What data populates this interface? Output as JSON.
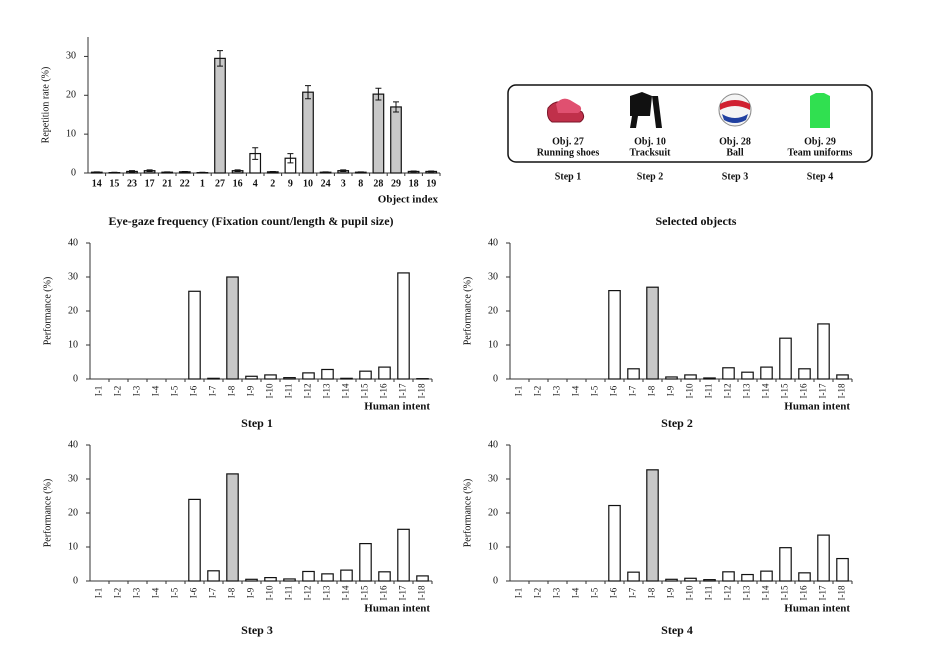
{
  "chart_data": [
    {
      "type": "bar",
      "title": "Eye-gaze frequency (Fixation count/length & pupil size)",
      "xlabel": "Object index",
      "ylabel": "Repetition rate (%)",
      "categories": [
        "14",
        "15",
        "23",
        "17",
        "21",
        "22",
        "1",
        "27",
        "16",
        "4",
        "2",
        "9",
        "10",
        "24",
        "3",
        "8",
        "28",
        "29",
        "18",
        "19"
      ],
      "values": [
        0.2,
        0.1,
        0.4,
        0.6,
        0.2,
        0.3,
        0.1,
        29.5,
        0.6,
        5,
        0.3,
        3.8,
        20.8,
        0.2,
        0.6,
        0.2,
        20.3,
        17,
        0.4,
        0.4
      ],
      "errors": [
        0.1,
        0.1,
        0.2,
        0.2,
        0.1,
        0.1,
        0.1,
        2,
        0.2,
        1.5,
        0.1,
        1.2,
        1.7,
        0.1,
        0.2,
        0.1,
        1.5,
        1.3,
        0.1,
        0.1
      ],
      "colors": [
        "#bbb",
        "#bbb",
        "#bbb",
        "#bbb",
        "#bbb",
        "#bbb",
        "#bbb",
        "#c8c8c8",
        "#bbb",
        "#ffffff",
        "#bbb",
        "#ffffff",
        "#c8c8c8",
        "#bbb",
        "#bbb",
        "#bbb",
        "#c8c8c8",
        "#c8c8c8",
        "#bbb",
        "#bbb"
      ],
      "ylim": [
        0,
        35
      ],
      "yticks": [
        0,
        10,
        20,
        30
      ]
    },
    {
      "type": "bar",
      "title": "Step 1",
      "xlabel": "Human intent",
      "ylabel": "Performance (%)",
      "categories": [
        "I-1",
        "I-2",
        "I-3",
        "I-4",
        "I-5",
        "I-6",
        "I-7",
        "I-8",
        "I-9",
        "I-10",
        "I-11",
        "I-12",
        "I-13",
        "I-14",
        "I-15",
        "I-16",
        "I-17",
        "I-18"
      ],
      "values": [
        0,
        0,
        0,
        0,
        0,
        25.8,
        0.2,
        30,
        0.8,
        1.2,
        0.4,
        1.8,
        2.8,
        0.2,
        2.3,
        3.5,
        31.2,
        0.1
      ],
      "colors": [
        "#fff",
        "#fff",
        "#fff",
        "#fff",
        "#fff",
        "#fff",
        "#fff",
        "#c8c8c8",
        "#fff",
        "#fff",
        "#fff",
        "#fff",
        "#fff",
        "#fff",
        "#fff",
        "#fff",
        "#fff",
        "#fff"
      ],
      "ylim": [
        0,
        40
      ],
      "yticks": [
        0,
        10,
        20,
        30,
        40
      ]
    },
    {
      "type": "bar",
      "title": "Step 2",
      "xlabel": "Human intent",
      "ylabel": "Performance (%)",
      "categories": [
        "I-1",
        "I-2",
        "I-3",
        "I-4",
        "I-5",
        "I-6",
        "I-7",
        "I-8",
        "I-9",
        "I-10",
        "I-11",
        "I-12",
        "I-13",
        "I-14",
        "I-15",
        "I-16",
        "I-17",
        "I-18"
      ],
      "values": [
        0,
        0,
        0,
        0,
        0,
        26,
        3,
        27,
        0.6,
        1.2,
        0.3,
        3.3,
        2,
        3.5,
        12,
        3,
        16.2,
        1.2
      ],
      "colors": [
        "#fff",
        "#fff",
        "#fff",
        "#fff",
        "#fff",
        "#fff",
        "#fff",
        "#c8c8c8",
        "#fff",
        "#fff",
        "#fff",
        "#fff",
        "#fff",
        "#fff",
        "#fff",
        "#fff",
        "#fff",
        "#fff"
      ],
      "ylim": [
        0,
        40
      ],
      "yticks": [
        0,
        10,
        20,
        30,
        40
      ]
    },
    {
      "type": "bar",
      "title": "Step 3",
      "xlabel": "Human intent",
      "ylabel": "Performance (%)",
      "categories": [
        "I-1",
        "I-2",
        "I-3",
        "I-4",
        "I-5",
        "I-6",
        "I-7",
        "I-8",
        "I-9",
        "I-10",
        "I-11",
        "I-12",
        "I-13",
        "I-14",
        "I-15",
        "I-16",
        "I-17",
        "I-18"
      ],
      "values": [
        0,
        0,
        0,
        0,
        0,
        24,
        3,
        31.5,
        0.5,
        1,
        0.6,
        2.8,
        2.1,
        3.2,
        11,
        2.7,
        15.2,
        1.5
      ],
      "colors": [
        "#fff",
        "#fff",
        "#fff",
        "#fff",
        "#fff",
        "#fff",
        "#fff",
        "#c8c8c8",
        "#fff",
        "#fff",
        "#fff",
        "#fff",
        "#fff",
        "#fff",
        "#fff",
        "#fff",
        "#fff",
        "#fff"
      ],
      "ylim": [
        0,
        40
      ],
      "yticks": [
        0,
        10,
        20,
        30,
        40
      ]
    },
    {
      "type": "bar",
      "title": "Step 4",
      "xlabel": "Human intent",
      "ylabel": "Performance (%)",
      "categories": [
        "I-1",
        "I-2",
        "I-3",
        "I-4",
        "I-5",
        "I-6",
        "I-7",
        "I-8",
        "I-9",
        "I-10",
        "I-11",
        "I-12",
        "I-13",
        "I-14",
        "I-15",
        "I-16",
        "I-17",
        "I-18"
      ],
      "values": [
        0,
        0,
        0,
        0,
        0,
        22.2,
        2.6,
        32.7,
        0.5,
        0.8,
        0.4,
        2.7,
        1.9,
        2.9,
        9.8,
        2.4,
        13.5,
        6.6
      ],
      "colors": [
        "#fff",
        "#fff",
        "#fff",
        "#fff",
        "#fff",
        "#fff",
        "#fff",
        "#c8c8c8",
        "#fff",
        "#fff",
        "#fff",
        "#fff",
        "#fff",
        "#fff",
        "#fff",
        "#fff",
        "#fff",
        "#fff"
      ],
      "ylim": [
        0,
        40
      ],
      "yticks": [
        0,
        10,
        20,
        30,
        40
      ]
    }
  ],
  "selected_objects": {
    "title": "Selected objects",
    "items": [
      {
        "label": "Obj. 27",
        "name": "Running shoes",
        "step": "Step 1"
      },
      {
        "label": "Obj. 10",
        "name": "Tracksuit",
        "step": "Step 2"
      },
      {
        "label": "Obj. 28",
        "name": "Ball",
        "step": "Step 3"
      },
      {
        "label": "Obj. 29",
        "name": "Team uniforms",
        "step": "Step 4"
      }
    ]
  }
}
